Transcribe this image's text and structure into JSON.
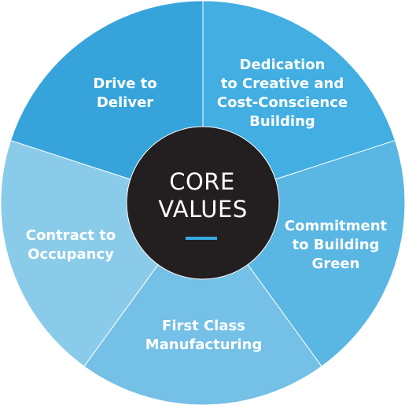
{
  "center": {
    "lines": [
      "CORE",
      "VALUES"
    ],
    "fill": "#231f20",
    "accent": "#36a9e1"
  },
  "segments": [
    {
      "lines": [
        "Dedication",
        "to Creative and",
        "Cost-Conscience",
        "Building"
      ],
      "color": "#42aee2"
    },
    {
      "lines": [
        "Commitment",
        "to Building",
        "Green"
      ],
      "color": "#5ab6e3"
    },
    {
      "lines": [
        "First Class",
        "Manufacturing"
      ],
      "color": "#74c0e7"
    },
    {
      "lines": [
        "Contract to",
        "Occupancy"
      ],
      "color": "#8acbea"
    },
    {
      "lines": [
        "Drive to",
        "Deliver"
      ],
      "color": "#36a4db"
    }
  ],
  "divider_color": "#ffffff"
}
